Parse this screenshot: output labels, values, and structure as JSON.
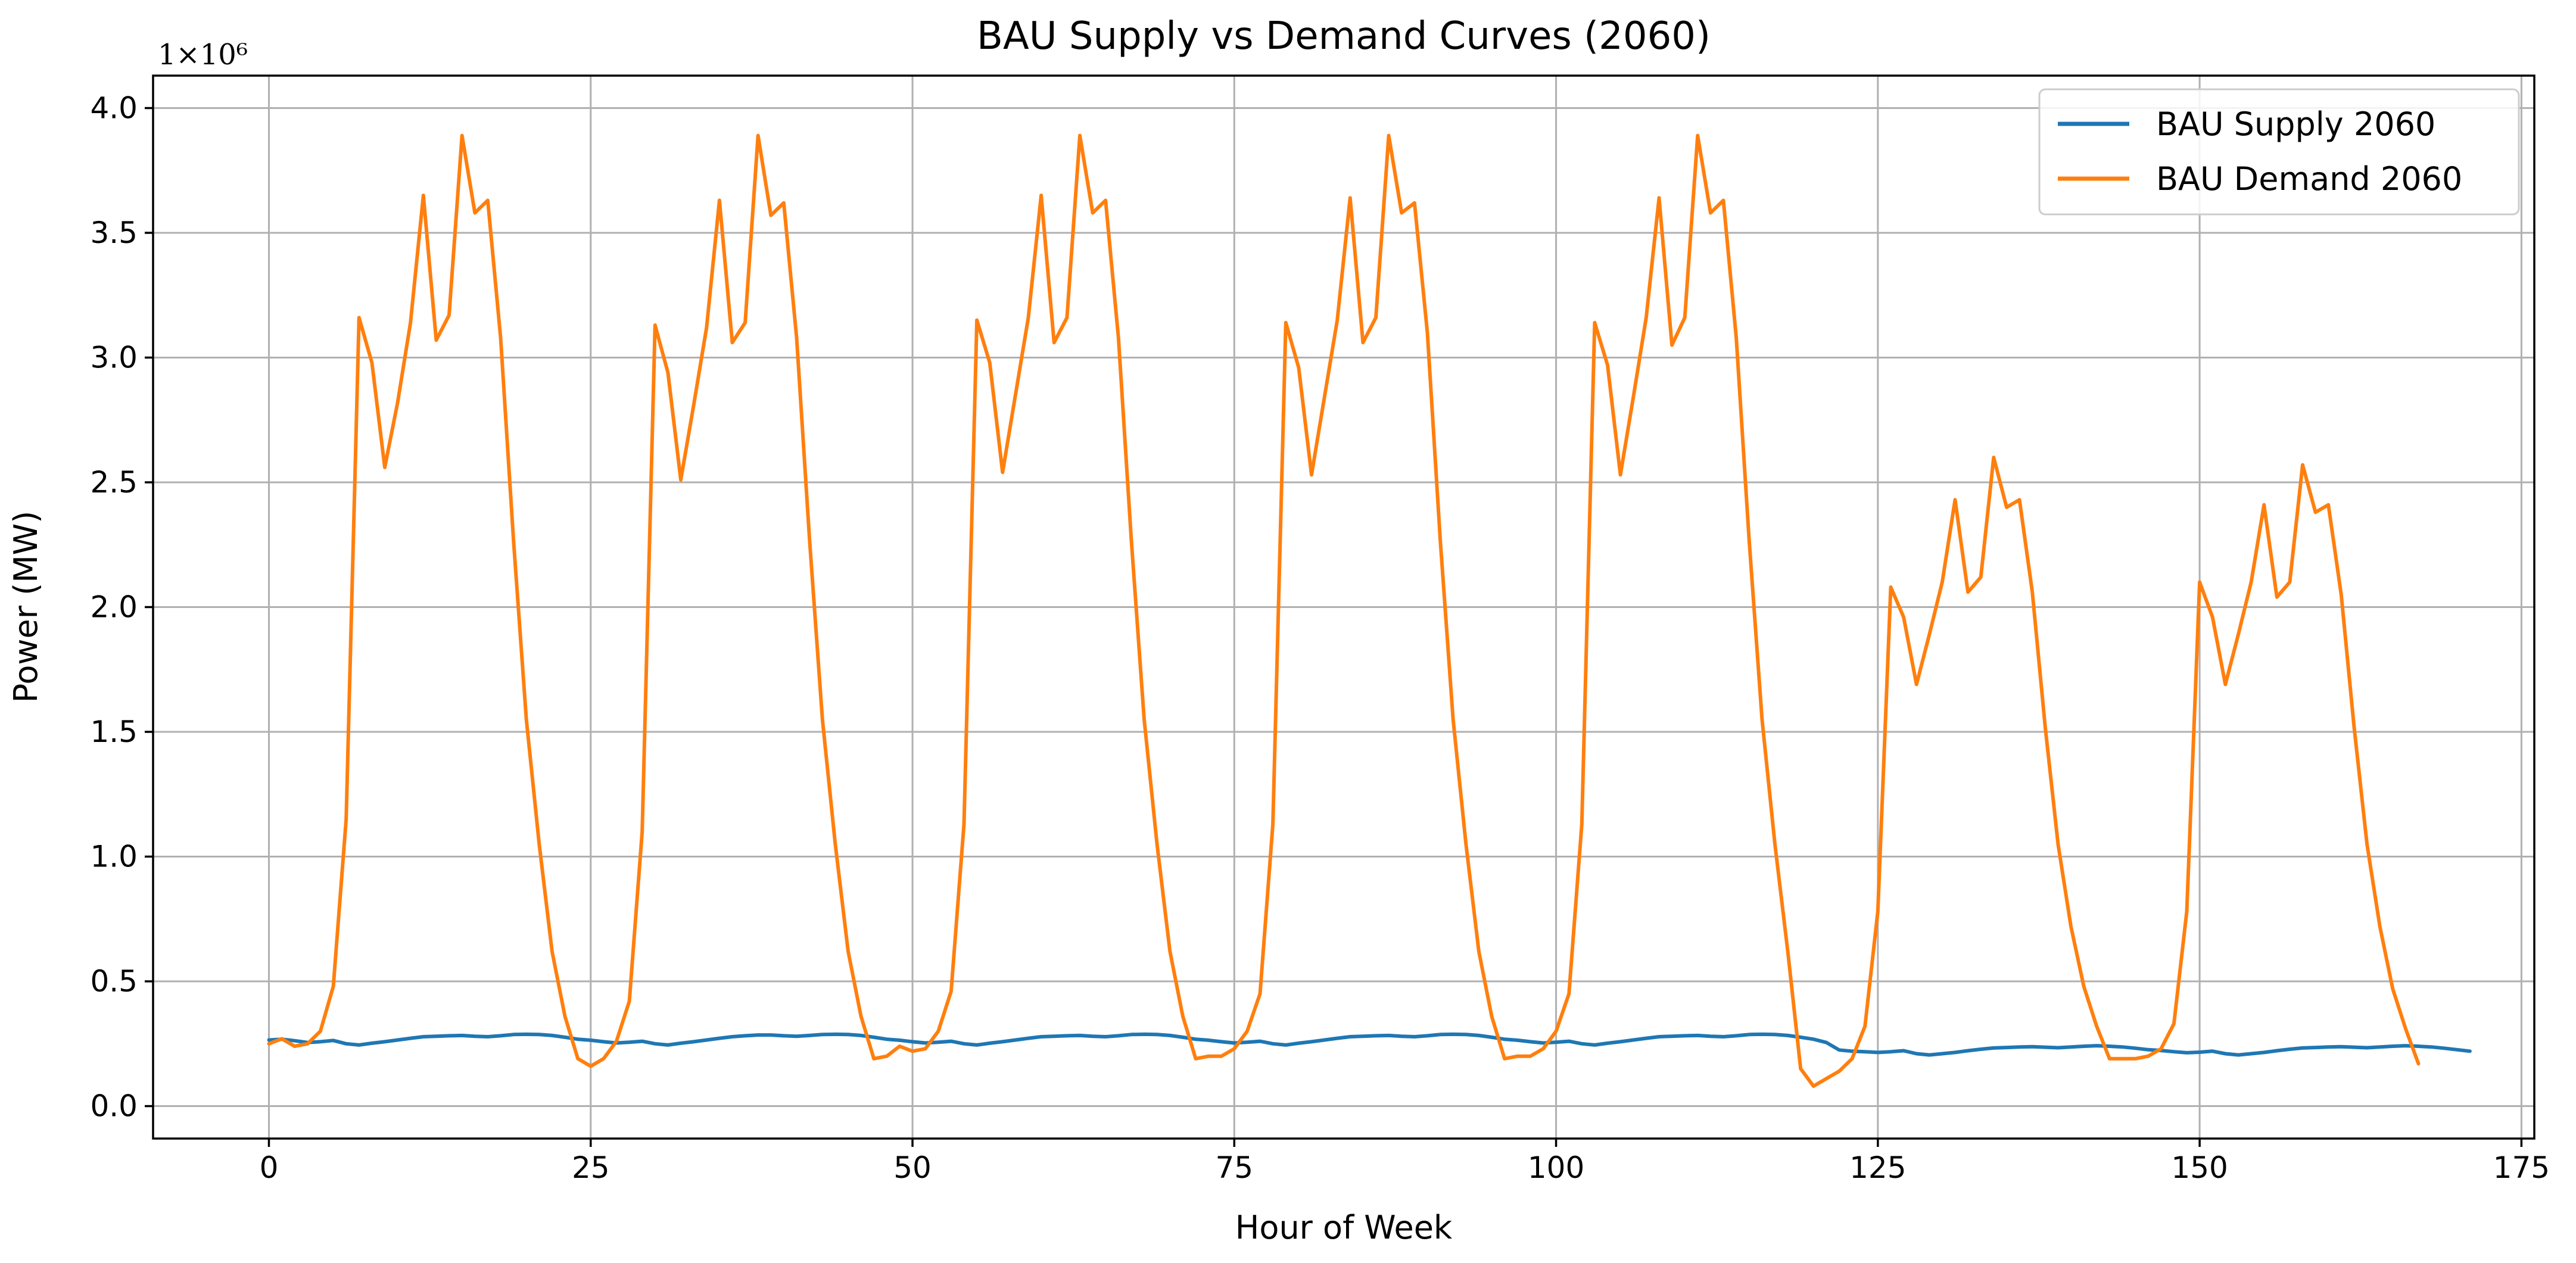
{
  "chart_data": {
    "type": "line",
    "title": "BAU Supply vs Demand Curves (2060)",
    "xlabel": "Hour of Week",
    "ylabel": "Power (MW)",
    "y_multiplier": "1×10⁶",
    "xlim": [
      -9,
      176
    ],
    "ylim": [
      -0.13,
      4.13
    ],
    "xticks": [
      0,
      25,
      50,
      75,
      100,
      125,
      150,
      175
    ],
    "xtick_labels": [
      "0",
      "25",
      "50",
      "75",
      "100",
      "125",
      "150",
      "175"
    ],
    "yticks": [
      0,
      0.5,
      1.0,
      1.5,
      2.0,
      2.5,
      3.0,
      3.5,
      4.0
    ],
    "ytick_labels": [
      "0.0",
      "0.5",
      "1.0",
      "1.5",
      "2.0",
      "2.5",
      "3.0",
      "3.5",
      "4.0"
    ],
    "grid": true,
    "legend_position": "top-right",
    "colors": {
      "supply": "#1f77b4",
      "demand": "#ff7f0e"
    },
    "series": [
      {
        "name": "BAU Supply 2060",
        "x_start": 0,
        "x_step": 1,
        "values": [
          0.265,
          0.268,
          0.262,
          0.255,
          0.258,
          0.263,
          0.25,
          0.245,
          0.252,
          0.258,
          0.265,
          0.272,
          0.278,
          0.28,
          0.282,
          0.283,
          0.28,
          0.278,
          0.282,
          0.287,
          0.288,
          0.287,
          0.283,
          0.276,
          0.268,
          0.264,
          0.258,
          0.253,
          0.256,
          0.26,
          0.25,
          0.245,
          0.252,
          0.258,
          0.265,
          0.272,
          0.278,
          0.282,
          0.285,
          0.285,
          0.282,
          0.28,
          0.283,
          0.287,
          0.288,
          0.287,
          0.283,
          0.276,
          0.268,
          0.264,
          0.258,
          0.253,
          0.256,
          0.26,
          0.25,
          0.245,
          0.252,
          0.258,
          0.265,
          0.272,
          0.278,
          0.28,
          0.282,
          0.283,
          0.28,
          0.278,
          0.282,
          0.287,
          0.288,
          0.287,
          0.283,
          0.276,
          0.268,
          0.264,
          0.258,
          0.253,
          0.256,
          0.26,
          0.25,
          0.245,
          0.252,
          0.258,
          0.265,
          0.272,
          0.278,
          0.28,
          0.282,
          0.283,
          0.28,
          0.278,
          0.282,
          0.287,
          0.288,
          0.287,
          0.283,
          0.276,
          0.268,
          0.264,
          0.258,
          0.253,
          0.256,
          0.26,
          0.25,
          0.245,
          0.252,
          0.258,
          0.265,
          0.272,
          0.278,
          0.28,
          0.282,
          0.283,
          0.28,
          0.278,
          0.282,
          0.287,
          0.288,
          0.287,
          0.283,
          0.276,
          0.268,
          0.255,
          0.225,
          0.22,
          0.218,
          0.215,
          0.218,
          0.222,
          0.21,
          0.205,
          0.21,
          0.215,
          0.222,
          0.228,
          0.233,
          0.235,
          0.237,
          0.238,
          0.236,
          0.234,
          0.237,
          0.24,
          0.242,
          0.24,
          0.237,
          0.232,
          0.226,
          0.223,
          0.218,
          0.214,
          0.216,
          0.22,
          0.21,
          0.205,
          0.21,
          0.215,
          0.222,
          0.228,
          0.233,
          0.235,
          0.237,
          0.238,
          0.236,
          0.234,
          0.237,
          0.24,
          0.242,
          0.24,
          0.237,
          0.232,
          0.226,
          0.22
        ]
      },
      {
        "name": "BAU Demand 2060",
        "x_start": 0,
        "x_step": 1,
        "values": [
          0.25,
          0.27,
          0.24,
          0.25,
          0.3,
          0.48,
          1.15,
          3.16,
          2.98,
          2.56,
          2.82,
          3.14,
          3.65,
          3.07,
          3.17,
          3.89,
          3.58,
          3.63,
          3.08,
          2.27,
          1.55,
          1.05,
          0.62,
          0.36,
          0.19,
          0.16,
          0.19,
          0.26,
          0.42,
          1.1,
          3.13,
          2.94,
          2.51,
          2.81,
          3.12,
          3.63,
          3.06,
          3.14,
          3.89,
          3.57,
          3.62,
          3.08,
          2.27,
          1.55,
          1.05,
          0.62,
          0.36,
          0.19,
          0.2,
          0.24,
          0.22,
          0.23,
          0.3,
          0.46,
          1.13,
          3.15,
          2.98,
          2.54,
          2.85,
          3.16,
          3.65,
          3.06,
          3.16,
          3.89,
          3.58,
          3.63,
          3.08,
          2.27,
          1.55,
          1.05,
          0.62,
          0.36,
          0.19,
          0.2,
          0.2,
          0.23,
          0.3,
          0.45,
          1.13,
          3.14,
          2.96,
          2.53,
          2.84,
          3.15,
          3.64,
          3.06,
          3.16,
          3.89,
          3.58,
          3.62,
          3.1,
          2.27,
          1.55,
          1.05,
          0.62,
          0.36,
          0.19,
          0.2,
          0.2,
          0.23,
          0.3,
          0.45,
          1.13,
          3.14,
          2.97,
          2.53,
          2.84,
          3.16,
          3.64,
          3.05,
          3.16,
          3.89,
          3.58,
          3.63,
          3.08,
          2.27,
          1.55,
          1.05,
          0.62,
          0.15,
          0.08,
          0.11,
          0.14,
          0.19,
          0.32,
          0.78,
          2.08,
          1.96,
          1.69,
          1.89,
          2.1,
          2.43,
          2.06,
          2.12,
          2.6,
          2.4,
          2.43,
          2.06,
          1.52,
          1.05,
          0.72,
          0.48,
          0.32,
          0.19,
          0.19,
          0.19,
          0.2,
          0.23,
          0.33,
          0.78,
          2.1,
          1.96,
          1.69,
          1.89,
          2.1,
          2.41,
          2.04,
          2.1,
          2.57,
          2.38,
          2.41,
          2.05,
          1.52,
          1.05,
          0.72,
          0.47,
          0.31,
          0.17
        ]
      }
    ]
  }
}
